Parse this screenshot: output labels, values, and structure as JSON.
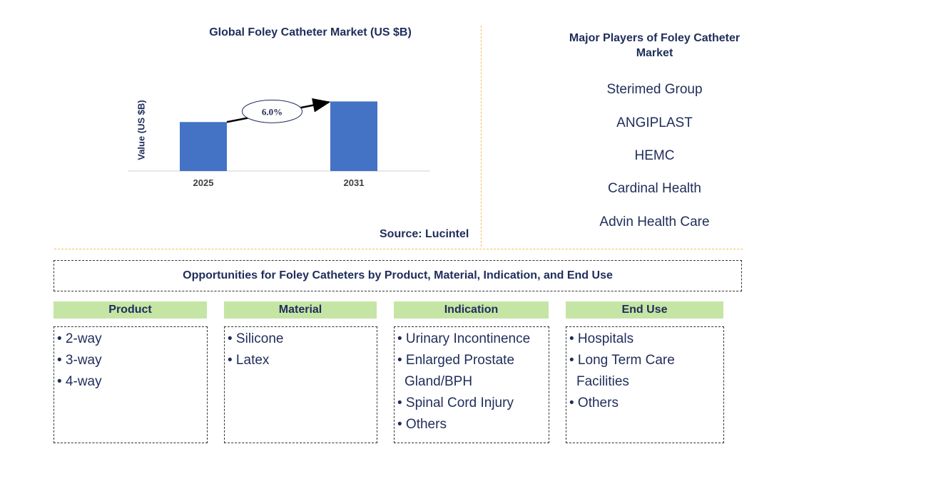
{
  "chart_data": {
    "type": "bar",
    "title": "Global Foley Catheter Market (US $B)",
    "ylabel": "Value (US $B)",
    "xlabel": "",
    "categories": [
      "2025",
      "2031"
    ],
    "values": [
      1.0,
      1.42
    ],
    "ylim": [
      0,
      1.6
    ],
    "annotation": "6.0%",
    "bar_color": "#4472c4"
  },
  "source": "Source: Lucintel",
  "players": {
    "title": "Major Players of Foley Catheter Market",
    "items": [
      "Sterimed Group",
      "ANGIPLAST",
      "HEMC",
      "Cardinal Health",
      "Advin Health Care"
    ]
  },
  "opportunities": {
    "title": "Opportunities for Foley Catheters by Product, Material, Indication, and End Use",
    "categories": [
      {
        "header": "Product",
        "items": [
          [
            "• 2-way"
          ],
          [
            "• 3-way"
          ],
          [
            "• 4-way"
          ]
        ]
      },
      {
        "header": "Material",
        "items": [
          [
            "• Silicone"
          ],
          [
            "• Latex"
          ]
        ]
      },
      {
        "header": "Indication",
        "items": [
          [
            "• Urinary Incontinence"
          ],
          [
            "• Enlarged Prostate",
            "Gland/BPH"
          ],
          [
            "• Spinal Cord Injury"
          ],
          [
            "• Others"
          ]
        ]
      },
      {
        "header": "End Use",
        "items": [
          [
            "• Hospitals"
          ],
          [
            "• Long Term Care",
            "Facilities"
          ],
          [
            "• Others"
          ]
        ]
      }
    ]
  }
}
